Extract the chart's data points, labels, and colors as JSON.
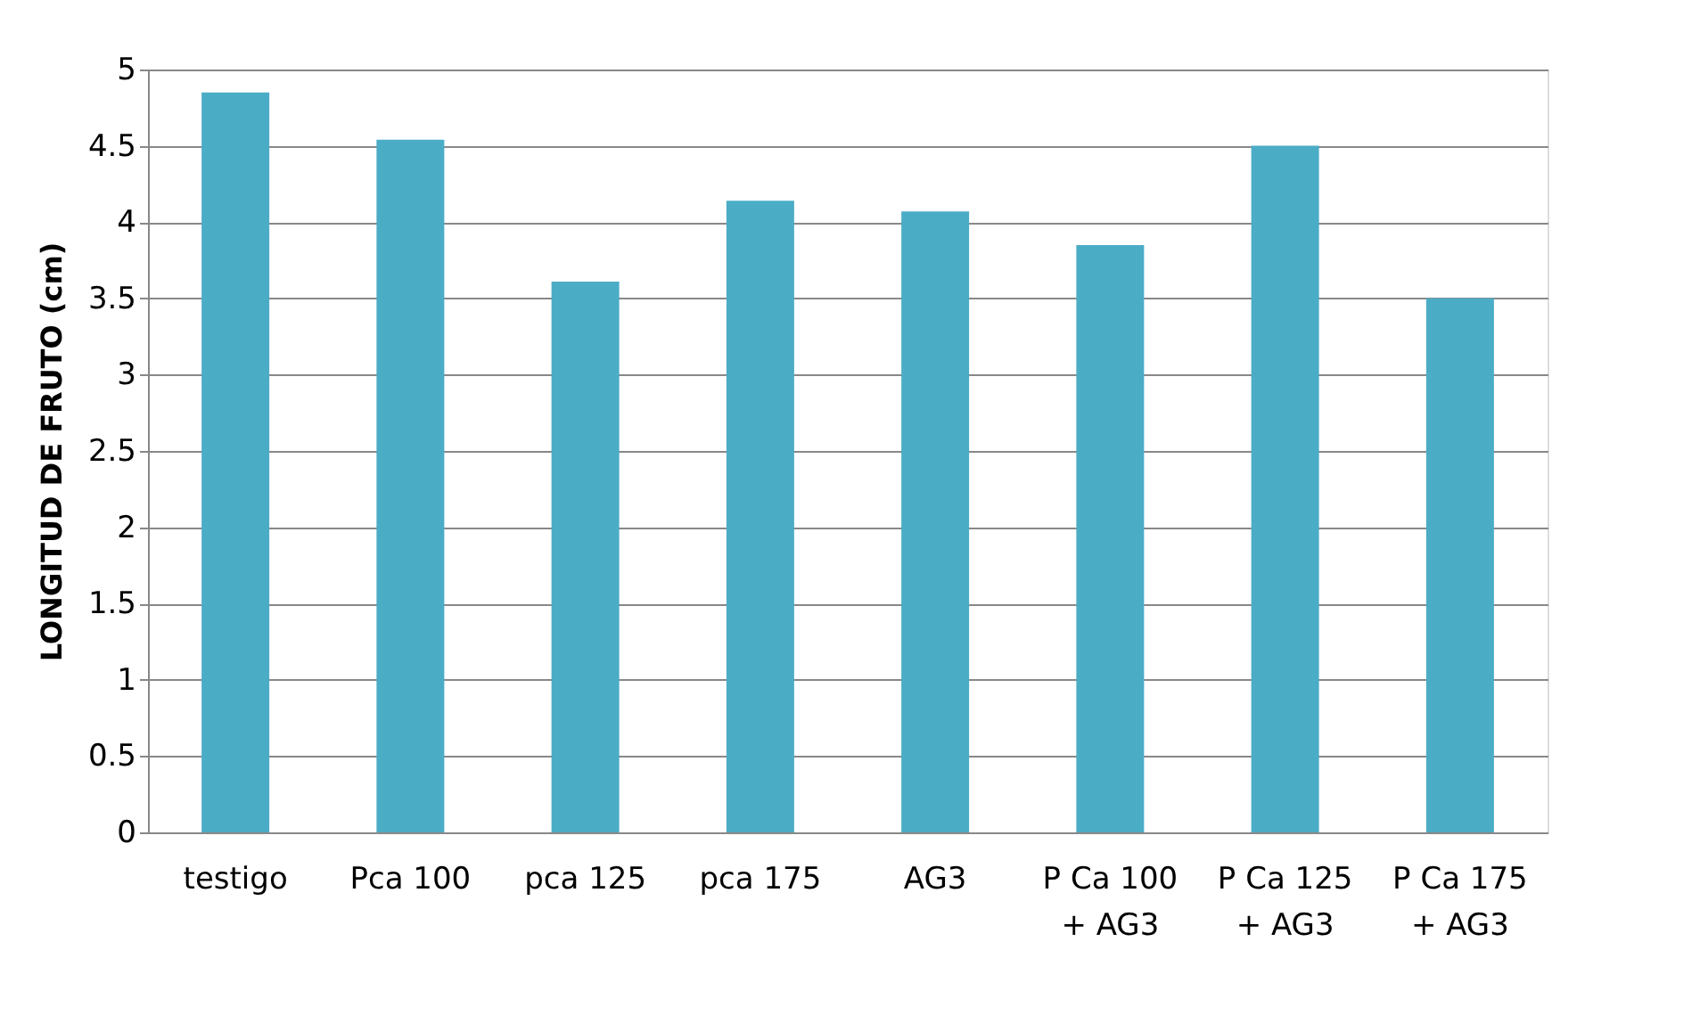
{
  "chart_data": {
    "type": "bar",
    "ylabel": "LONGITUD  DE  FRUTO (cm)",
    "categories": [
      "testigo",
      "Pca 100",
      "pca 125",
      "pca 175",
      "AG3",
      "P Ca 100\n+ AG3",
      "P Ca 125\n+ AG3",
      "P Ca 175\n+ AG3"
    ],
    "values": [
      4.85,
      4.54,
      3.61,
      4.14,
      4.07,
      3.85,
      4.5,
      3.5
    ],
    "color": "#4bacc6",
    "ylim": [
      0,
      5
    ],
    "yticks": [
      0,
      0.5,
      1,
      1.5,
      2,
      2.5,
      3,
      3.5,
      4,
      4.5,
      5
    ],
    "grid": "y"
  }
}
